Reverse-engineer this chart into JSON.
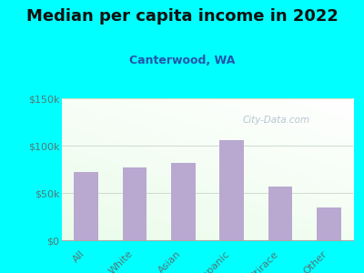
{
  "title": "Median per capita income in 2022",
  "subtitle": "Canterwood, WA",
  "categories": [
    "All",
    "White",
    "Asian",
    "Hispanic",
    "Multirace",
    "Other"
  ],
  "values": [
    72000,
    77000,
    82000,
    106000,
    57000,
    35000
  ],
  "bar_color": "#b9a9d0",
  "background_outer": "#00FFFF",
  "title_color": "#111111",
  "subtitle_color": "#2255aa",
  "tick_color": "#557777",
  "ylim": [
    0,
    150000
  ],
  "yticks": [
    0,
    50000,
    100000,
    150000
  ],
  "ytick_labels": [
    "$0",
    "$50k",
    "$100k",
    "$150k"
  ],
  "watermark": "City-Data.com",
  "watermark_color": "#aabbcc",
  "title_fontsize": 13,
  "subtitle_fontsize": 9,
  "tick_fontsize": 8
}
